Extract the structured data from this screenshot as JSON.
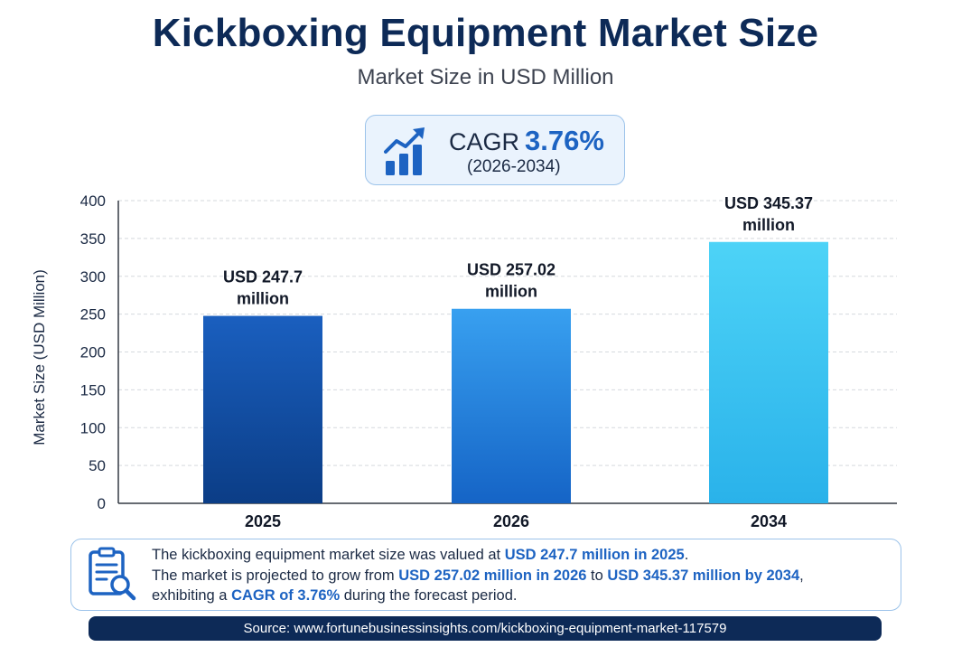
{
  "title": "Kickboxing Equipment Market Size",
  "subtitle": "Market Size in USD Million",
  "cagr": {
    "label": "CAGR",
    "value": "3.76%",
    "period": "(2026-2034)",
    "icon": "growth-bar-chart-icon"
  },
  "chart_data": {
    "type": "bar",
    "categories": [
      "2025",
      "2026",
      "2034"
    ],
    "values": [
      247.7,
      257.02,
      345.37
    ],
    "data_labels": [
      [
        "USD 247.7",
        "million"
      ],
      [
        "USD 257.02",
        "million"
      ],
      [
        "USD 345.37",
        "million"
      ]
    ],
    "ylabel": "Market Size (USD Million)",
    "xlabel": "",
    "ylim": [
      0,
      400
    ],
    "yticks": [
      0,
      50,
      100,
      150,
      200,
      250,
      300,
      350,
      400
    ],
    "grid": true,
    "bar_colors": [
      [
        "#1a5fbf",
        "#0b3d86"
      ],
      [
        "#38a0f0",
        "#1564c6"
      ],
      [
        "#4dd3f7",
        "#2ab2ea"
      ]
    ]
  },
  "summary": {
    "icon": "report-magnifier-icon",
    "line1": {
      "text": "The kickboxing equipment market size was valued at ",
      "hl": "USD 247.7 million in 2025",
      "end": "."
    },
    "line2": {
      "text": "The market is projected to grow from ",
      "hl1": "USD 257.02 million in 2026",
      "mid": " to ",
      "hl2": "USD 345.37 million by 2034",
      "end": ","
    },
    "line3": {
      "text": "exhibiting a ",
      "hl": "CAGR of 3.76%",
      "end": " during the forecast period."
    }
  },
  "source": "Source: www.fortunebusinessinsights.com/kickboxing-equipment-market-117579"
}
